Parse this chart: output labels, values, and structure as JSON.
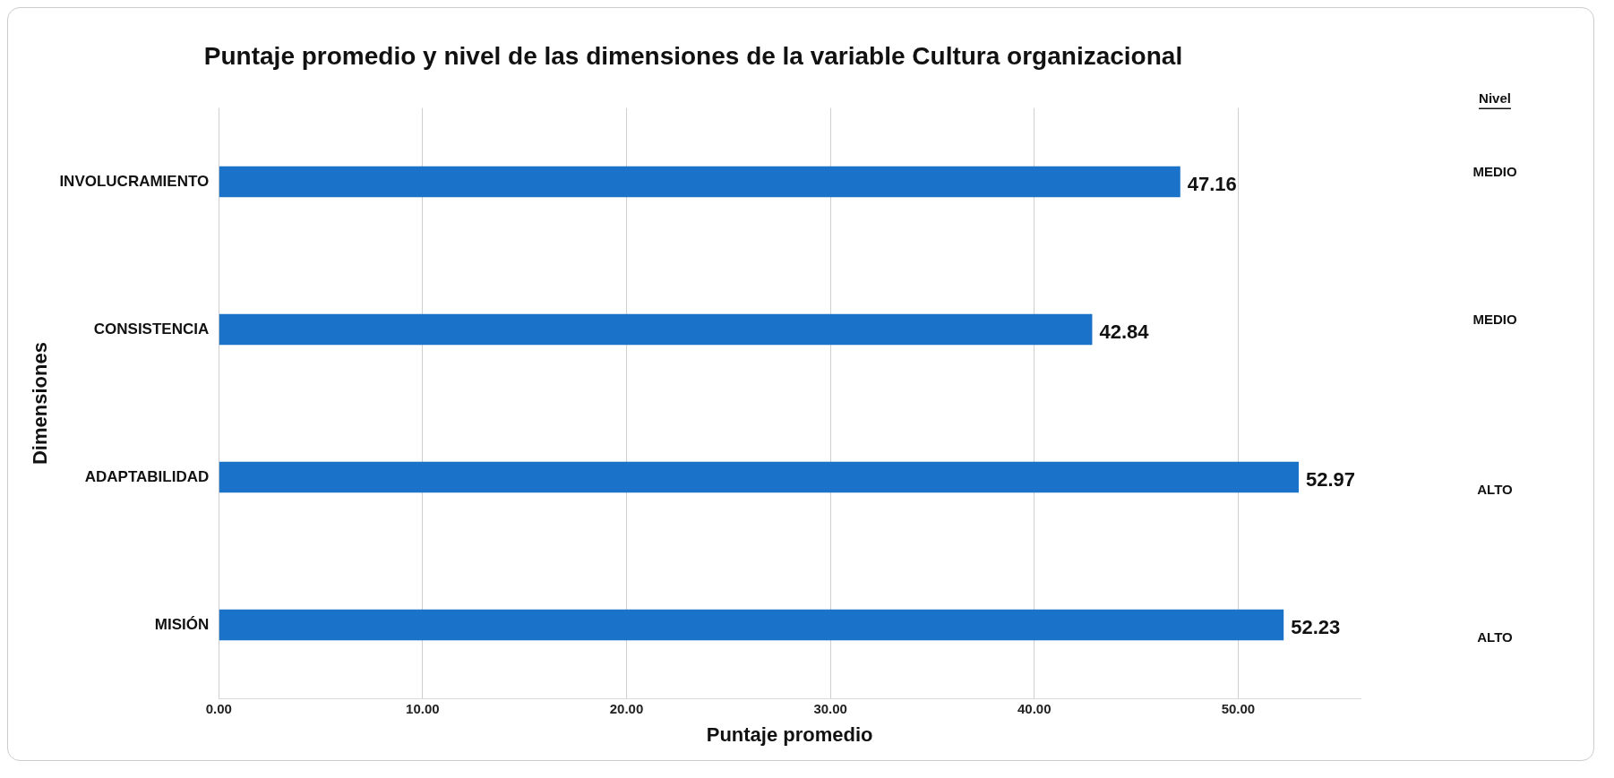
{
  "chart_data": {
    "type": "bar",
    "orientation": "horizontal",
    "title": "Puntaje promedio y nivel de las dimensiones de la variable Cultura organizacional",
    "xlabel": "Puntaje promedio",
    "ylabel": "Dimensiones",
    "categories": [
      "INVOLUCRAMIENTO",
      "CONSISTENCIA",
      "ADAPTABILIDAD",
      "MISIÓN"
    ],
    "values": [
      47.16,
      42.84,
      52.97,
      52.23
    ],
    "color": "#1b72c9",
    "xlim": [
      0,
      56
    ],
    "xticks": [
      {
        "value": 0,
        "label": "0.00"
      },
      {
        "value": 10,
        "label": "10.00"
      },
      {
        "value": 20,
        "label": "20.00"
      },
      {
        "value": 30,
        "label": "30.00"
      },
      {
        "value": 40,
        "label": "40.00"
      },
      {
        "value": 50,
        "label": "50.00"
      }
    ],
    "grid": "x",
    "data_labels": true,
    "legend": false,
    "annotations": [
      "Nivel",
      "MEDIO",
      "MEDIO",
      "ALTO",
      "ALTO"
    ]
  }
}
